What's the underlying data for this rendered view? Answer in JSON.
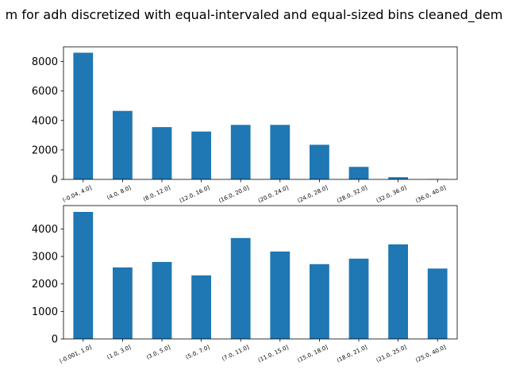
{
  "title": "m for adh discretized with equal-intervaled and equal-sized bins cleaned_dem",
  "chart_data": [
    {
      "type": "bar",
      "categories": [
        "(-0.04, 4.0]",
        "(4.0, 8.0]",
        "(8.0, 12.0]",
        "(12.0, 16.0]",
        "(16.0, 20.0]",
        "(20.0, 24.0]",
        "(24.0, 28.0]",
        "(28.0, 32.0]",
        "(32.0, 36.0]",
        "(36.0, 40.0]"
      ],
      "values": [
        8600,
        4650,
        3550,
        3250,
        3700,
        3700,
        2350,
        850,
        150,
        20
      ],
      "ylim": [
        0,
        9000
      ],
      "yticks": [
        0,
        2000,
        4000,
        6000,
        8000
      ],
      "color": "#1f77b4"
    },
    {
      "type": "bar",
      "categories": [
        "(-0.001, 1.0]",
        "(1.0, 3.0]",
        "(3.0, 5.0]",
        "(5.0, 7.0]",
        "(7.0, 11.0]",
        "(11.0, 15.0]",
        "(15.0, 18.0]",
        "(18.0, 21.0]",
        "(21.0, 25.0]",
        "(25.0, 40.0]"
      ],
      "values": [
        4620,
        2600,
        2800,
        2310,
        3670,
        3180,
        2720,
        2920,
        3440,
        2560
      ],
      "ylim": [
        0,
        4850
      ],
      "yticks": [
        0,
        1000,
        2000,
        3000,
        4000
      ],
      "color": "#1f77b4"
    }
  ]
}
